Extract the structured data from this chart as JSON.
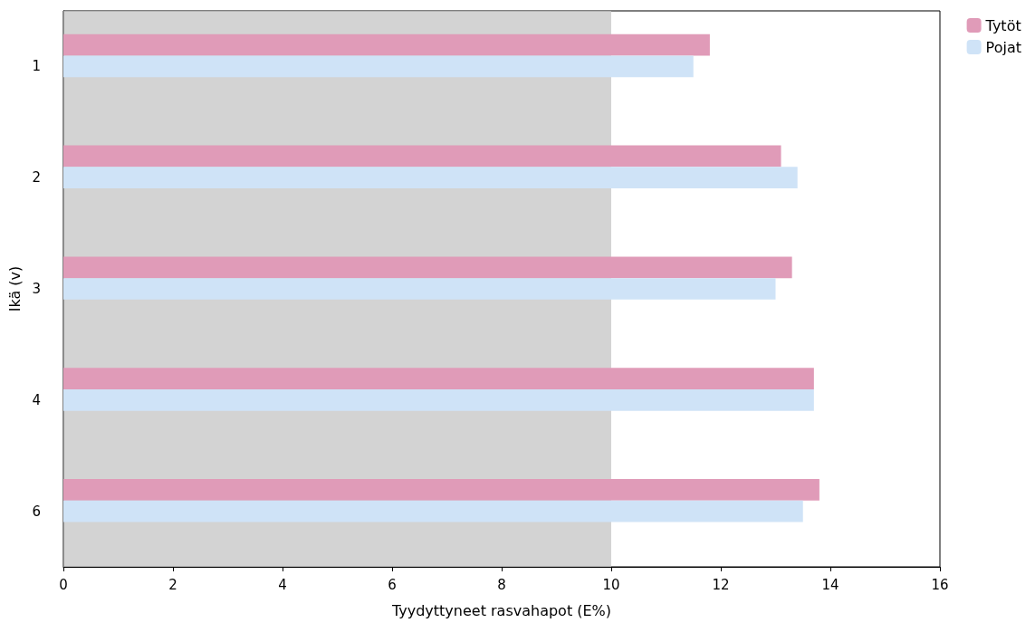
{
  "chart_data": {
    "type": "bar",
    "orientation": "horizontal",
    "xlabel": "Tyydyttyneet rasvahapot (E%)",
    "ylabel": "Ikä (v)",
    "categories": [
      "1",
      "2",
      "3",
      "4",
      "6"
    ],
    "series": [
      {
        "name": "Tytöt",
        "color": "#e09bb8",
        "values": [
          11.8,
          13.1,
          13.3,
          13.7,
          13.8
        ]
      },
      {
        "name": "Pojat",
        "color": "#cfe3f7",
        "values": [
          11.5,
          13.4,
          13.0,
          13.7,
          13.5
        ]
      }
    ],
    "xlim": [
      0,
      16
    ],
    "xticks": [
      0,
      2,
      4,
      6,
      8,
      10,
      12,
      14,
      16
    ],
    "bands": [
      {
        "axis": "x",
        "from": 0,
        "to": 10,
        "color": "#c4c4c4"
      }
    ],
    "grid": false,
    "legend": "top right"
  }
}
